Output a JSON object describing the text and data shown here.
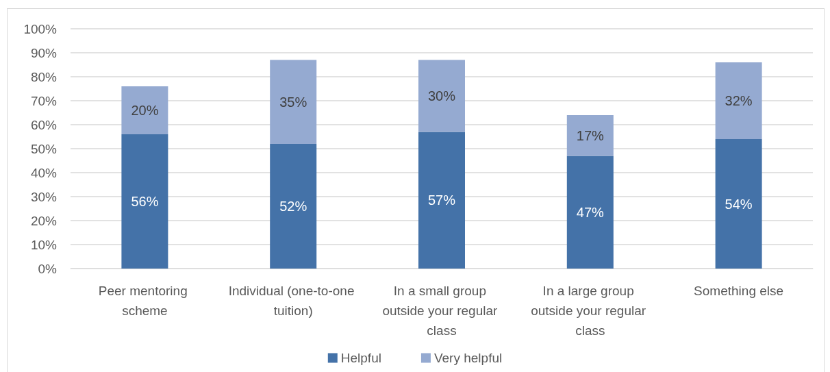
{
  "chart_data": {
    "type": "bar",
    "stacked": true,
    "categories": [
      "Peer mentoring scheme",
      "Individual (one-to-one tuition)",
      "In a small group outside your regular class",
      "In a large group outside your regular class",
      "Something else"
    ],
    "series": [
      {
        "name": "Helpful",
        "color": "#4472a8",
        "values": [
          56,
          52,
          57,
          47,
          54
        ],
        "value_labels": [
          "56%",
          "52%",
          "57%",
          "47%",
          "54%"
        ]
      },
      {
        "name": "Very helpful",
        "color": "#95aad1",
        "values": [
          20,
          35,
          30,
          17,
          32
        ],
        "value_labels": [
          "20%",
          "35%",
          "30%",
          "17%",
          "32%"
        ]
      }
    ],
    "ylim": [
      0,
      100
    ],
    "yticks": [
      {
        "value": 0,
        "label": "0%"
      },
      {
        "value": 10,
        "label": "10%"
      },
      {
        "value": 20,
        "label": "20%"
      },
      {
        "value": 30,
        "label": "30%"
      },
      {
        "value": 40,
        "label": "40%"
      },
      {
        "value": 50,
        "label": "50%"
      },
      {
        "value": 60,
        "label": "60%"
      },
      {
        "value": 70,
        "label": "70%"
      },
      {
        "value": 80,
        "label": "80%"
      },
      {
        "value": 90,
        "label": "90%"
      },
      {
        "value": 100,
        "label": "100%"
      }
    ],
    "grid": "y",
    "legend": "bottom"
  }
}
